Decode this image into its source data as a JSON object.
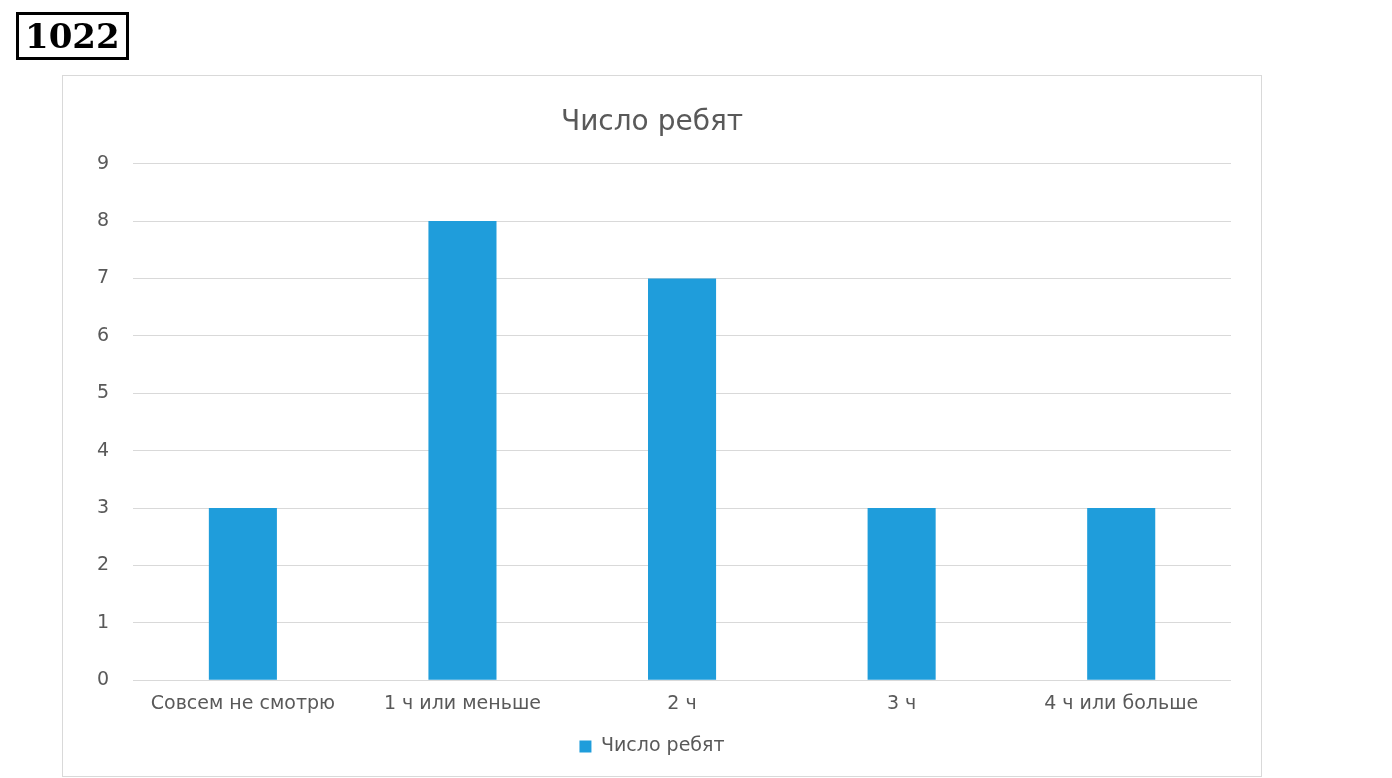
{
  "chart_data": {
    "type": "bar",
    "title": "Число ребят",
    "categories": [
      "Совсем не смотрю",
      "1 ч или меньше",
      "2 ч",
      "3 ч",
      "4 ч или больше"
    ],
    "series": [
      {
        "name": "Число ребят",
        "color": "#1f9ddb",
        "values": [
          3,
          8,
          7,
          3,
          3
        ]
      }
    ],
    "ylim": [
      0,
      9
    ],
    "yticks": [
      0,
      1,
      2,
      3,
      4,
      5,
      6,
      7,
      8,
      9
    ],
    "grid": "y",
    "legend": "bottom",
    "annotations": [
      "1022"
    ]
  }
}
